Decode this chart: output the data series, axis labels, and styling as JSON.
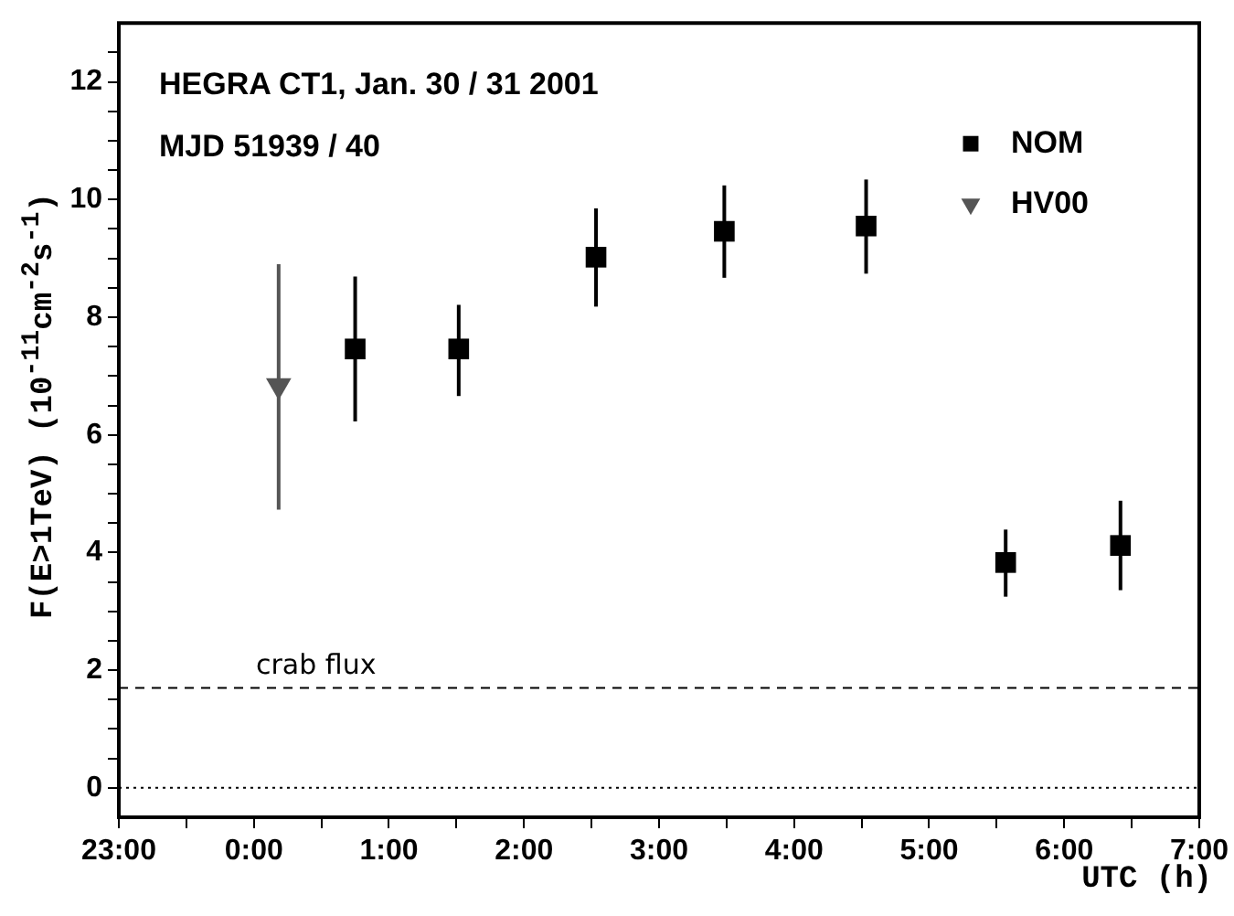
{
  "chart_data": {
    "type": "scatter",
    "xlabel": "UTC (h)",
    "ylabel": "F(E>1TeV)  (10$^{-11}$cm$^{-2}$s$^{-1}$)",
    "annotations": [
      "HEGRA CT1, Jan. 30 / 31 2001",
      "MJD 51939 / 40"
    ],
    "xlim": [
      "2001-01-30T23:00",
      "2001-01-31T07:00"
    ],
    "ylim": [
      -0.5,
      13
    ],
    "xticks": [
      {
        "value": "2001-01-30T23:00",
        "label": "23:00"
      },
      {
        "value": "2001-01-30T23:30",
        "label": null
      },
      {
        "value": "2001-01-31T00:00",
        "label": "0:00"
      },
      {
        "value": "2001-01-31T00:30",
        "label": null
      },
      {
        "value": "2001-01-31T01:00",
        "label": "1:00"
      },
      {
        "value": "2001-01-31T01:30",
        "label": null
      },
      {
        "value": "2001-01-31T02:00",
        "label": "2:00"
      },
      {
        "value": "2001-01-31T02:30",
        "label": null
      },
      {
        "value": "2001-01-31T03:00",
        "label": "3:00"
      },
      {
        "value": "2001-01-31T03:30",
        "label": null
      },
      {
        "value": "2001-01-31T04:00",
        "label": "4:00"
      },
      {
        "value": "2001-01-31T04:30",
        "label": null
      },
      {
        "value": "2001-01-31T05:00",
        "label": "5:00"
      },
      {
        "value": "2001-01-31T05:30",
        "label": null
      },
      {
        "value": "2001-01-31T06:00",
        "label": "6:00"
      },
      {
        "value": "2001-01-31T06:30",
        "label": null
      },
      {
        "value": "2001-01-31T07:00",
        "label": "7:00"
      }
    ],
    "yticks": [
      0,
      {
        "value": 0.5,
        "label": null
      },
      {
        "value": 1,
        "label": null
      },
      {
        "value": 1.5,
        "label": null
      },
      2,
      {
        "value": 2.5,
        "label": null
      },
      {
        "value": 3,
        "label": null
      },
      {
        "value": 3.5,
        "label": null
      },
      4,
      {
        "value": 4.5,
        "label": null
      },
      {
        "value": 5,
        "label": null
      },
      {
        "value": 5.5,
        "label": null
      },
      6,
      {
        "value": 6.5,
        "label": null
      },
      {
        "value": 7,
        "label": null
      },
      {
        "value": 7.5,
        "label": null
      },
      8,
      {
        "value": 8.5,
        "label": null
      },
      {
        "value": 9,
        "label": null
      },
      {
        "value": 9.5,
        "label": null
      },
      10,
      {
        "value": 10.5,
        "label": null
      },
      {
        "value": 11,
        "label": null
      },
      {
        "value": 11.5,
        "label": null
      },
      12,
      {
        "value": 12.5,
        "label": null
      }
    ],
    "series": [
      {
        "name": "NOM",
        "color": "#000000",
        "marker": "square",
        "x": [
          "2001-01-31T00:45",
          "2001-01-31T01:31",
          "2001-01-31T02:32",
          "2001-01-31T03:29",
          "2001-01-31T04:32",
          "2001-01-31T05:34",
          "2001-01-31T06:25"
        ],
        "values": [
          7.46,
          7.46,
          9.02,
          9.46,
          9.55,
          3.83,
          4.12
        ],
        "errors": [
          [
            6.23,
            8.69
          ],
          [
            6.66,
            8.21
          ],
          [
            8.18,
            9.85
          ],
          [
            8.67,
            10.24
          ],
          [
            8.74,
            10.34
          ],
          [
            3.25,
            4.39
          ],
          [
            3.36,
            4.88
          ]
        ]
      },
      {
        "name": "HV00",
        "color": "#555555",
        "marker": "triangle",
        "x": [
          "2001-01-31T00:11"
        ],
        "values": [
          6.84
        ],
        "errors": [
          [
            4.73,
            8.9
          ]
        ]
      }
    ],
    "ref_lines": [
      {
        "axis": "y",
        "value": 1.7,
        "label": "crab flux",
        "line_style": "dashed",
        "color": "#000000"
      },
      {
        "axis": "y",
        "value": 0,
        "label": null,
        "line_style": "dotted",
        "color": "#000000"
      }
    ],
    "grid": false,
    "legend": "top right"
  }
}
